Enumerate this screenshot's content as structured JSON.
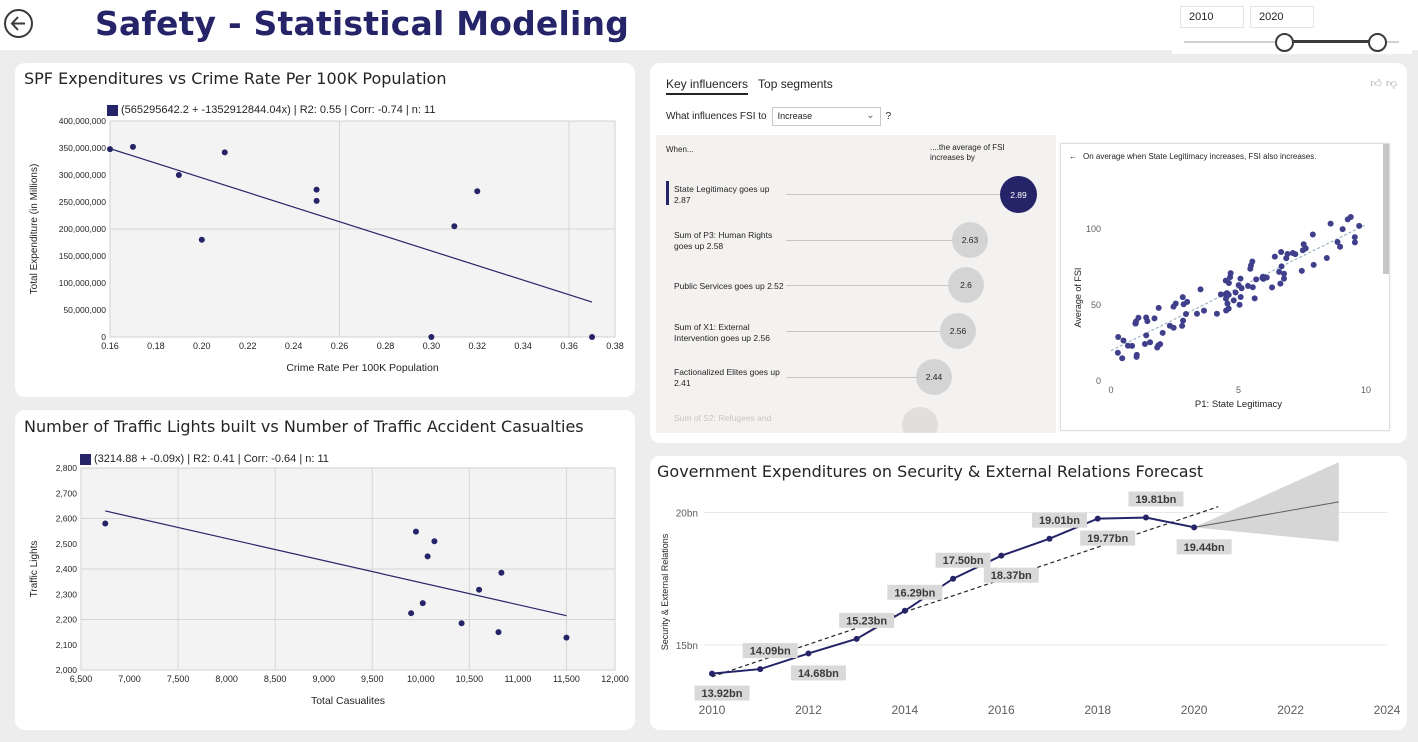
{
  "header": {
    "title": "Safety - Statistical Modeling",
    "back_icon": "back-arrow-icon"
  },
  "slicer": {
    "start": "2010",
    "end": "2020"
  },
  "chart1": {
    "title": "SPF Expenditures vs Crime Rate Per 100K Population",
    "legend": "(565295642.2 + -1352912844.04x) | R2: 0.55 | Corr: -0.74 | n: 11"
  },
  "chart2": {
    "title": "Number of Traffic Lights built vs Number of Traffic Accident Casualties",
    "legend": "(3214.88 + -0.09x) | R2: 0.41 | Corr: -0.64 | n: 11"
  },
  "chart3": {
    "title": "Government Expenditures on Security & External Relations Forecast"
  },
  "key_influencers": {
    "tab_active": "Key influencers",
    "tab_other": "Top segments",
    "question_prefix": "What influences FSI to",
    "dropdown_value": "Increase",
    "question_suffix": "?",
    "when_label": "When...",
    "avg_label": "....the average of FSI increases by",
    "detail_text": "On average when State Legitimacy increases, FSI also increases.",
    "rows": [
      {
        "label": "State Legitimacy goes up 2.87",
        "value": "2.89"
      },
      {
        "label": "Sum of P3: Human Rights goes up 2.58",
        "value": "2.63"
      },
      {
        "label": "Public Services goes up 2.52",
        "value": "2.6"
      },
      {
        "label": "Sum of X1: External Intervention goes up 2.56",
        "value": "2.56"
      },
      {
        "label": "Factionalized Elites goes up 2.41",
        "value": "2.44"
      },
      {
        "label": "Sum of S2: Refugees and",
        "value": ""
      }
    ]
  },
  "chart_data": [
    {
      "type": "scatter",
      "title": "SPF Expenditures vs Crime Rate Per 100K Population",
      "xlabel": "Crime Rate Per 100K Population",
      "ylabel": "Total Expenditure (in Millions)",
      "xlim": [
        0.16,
        0.38
      ],
      "ylim": [
        0,
        400000000
      ],
      "x_ticks": [
        "0.16",
        "0.18",
        "0.20",
        "0.22",
        "0.24",
        "0.26",
        "0.28",
        "0.30",
        "0.32",
        "0.34",
        "0.36",
        "0.38"
      ],
      "y_ticks": [
        "0",
        "50,000,000",
        "100,000,000",
        "150,000,000",
        "200,000,000",
        "250,000,000",
        "300,000,000",
        "350,000,000",
        "400,000,000"
      ],
      "points": [
        {
          "x": 0.16,
          "y": 348000000
        },
        {
          "x": 0.17,
          "y": 352000000
        },
        {
          "x": 0.19,
          "y": 300000000
        },
        {
          "x": 0.2,
          "y": 180000000
        },
        {
          "x": 0.21,
          "y": 342000000
        },
        {
          "x": 0.25,
          "y": 273000000
        },
        {
          "x": 0.25,
          "y": 252000000
        },
        {
          "x": 0.3,
          "y": 0
        },
        {
          "x": 0.31,
          "y": 205000000
        },
        {
          "x": 0.32,
          "y": 270000000
        },
        {
          "x": 0.37,
          "y": 0
        }
      ],
      "trendline": {
        "x": [
          0.16,
          0.37
        ],
        "y": [
          348828976,
          64717478
        ]
      }
    },
    {
      "type": "scatter",
      "title": "Number of Traffic Lights built vs Number of Traffic Accident Casualties",
      "xlabel": "Total Casualites",
      "ylabel": "Traffic Lights",
      "xlim": [
        6500,
        12000
      ],
      "ylim": [
        2000,
        2800
      ],
      "x_ticks": [
        "6,500",
        "7,000",
        "7,500",
        "8,000",
        "8,500",
        "9,000",
        "9,500",
        "10,000",
        "10,500",
        "11,000",
        "11,500",
        "12,000"
      ],
      "y_ticks": [
        "2,000",
        "2,100",
        "2,200",
        "2,300",
        "2,400",
        "2,500",
        "2,600",
        "2,700",
        "2,800"
      ],
      "points": [
        {
          "x": 6750,
          "y": 2580
        },
        {
          "x": 9900,
          "y": 2225
        },
        {
          "x": 9950,
          "y": 2548
        },
        {
          "x": 10020,
          "y": 2265
        },
        {
          "x": 10070,
          "y": 2450
        },
        {
          "x": 10140,
          "y": 2510
        },
        {
          "x": 10420,
          "y": 2185
        },
        {
          "x": 10600,
          "y": 2318
        },
        {
          "x": 10800,
          "y": 2150
        },
        {
          "x": 10830,
          "y": 2385
        },
        {
          "x": 11500,
          "y": 2128
        }
      ],
      "trendline": {
        "x": [
          6750,
          11500
        ],
        "y": [
          2630,
          2215
        ]
      }
    },
    {
      "type": "line",
      "title": "Government Expenditures on Security & External Relations Forecast",
      "xlabel": "",
      "ylabel": "Security & External Relations",
      "xlim": [
        2010,
        2024
      ],
      "ylim": [
        13.3,
        21.0
      ],
      "x_ticks": [
        "2010",
        "2012",
        "2014",
        "2016",
        "2018",
        "2020",
        "2022",
        "2024"
      ],
      "y_ticks": [
        {
          "value": 15,
          "label": "15bn"
        },
        {
          "value": 20,
          "label": "20bn"
        }
      ],
      "series": [
        {
          "x": [
            2010,
            2011,
            2012,
            2013,
            2014,
            2015,
            2016,
            2017,
            2018,
            2019,
            2020
          ],
          "y": [
            13.92,
            14.09,
            14.68,
            15.23,
            16.29,
            17.5,
            18.37,
            19.01,
            19.77,
            19.81,
            19.44
          ],
          "labels": [
            "13.92bn",
            "14.09bn",
            "14.68bn",
            "15.23bn",
            "16.29bn",
            "17.50bn",
            "18.37bn",
            "19.01bn",
            "19.77bn",
            "19.81bn",
            "19.44bn"
          ]
        }
      ],
      "trendline": {
        "x": [
          2010,
          2020.5
        ],
        "y": [
          13.8,
          20.22
        ]
      },
      "forecast": {
        "x": [
          2020,
          2023
        ],
        "y": [
          19.44,
          20.4
        ],
        "upper": [
          19.44,
          21.9
        ],
        "lower": [
          19.44,
          18.9
        ]
      }
    },
    {
      "type": "scatter",
      "xlabel": "P1: State Legitimacy",
      "ylabel": "Average of FSI",
      "xlim": [
        0,
        10
      ],
      "ylim": [
        0,
        110
      ],
      "x_ticks": [
        "0",
        "5",
        "10"
      ],
      "y_ticks": [
        "0",
        "50",
        "100"
      ]
    }
  ]
}
